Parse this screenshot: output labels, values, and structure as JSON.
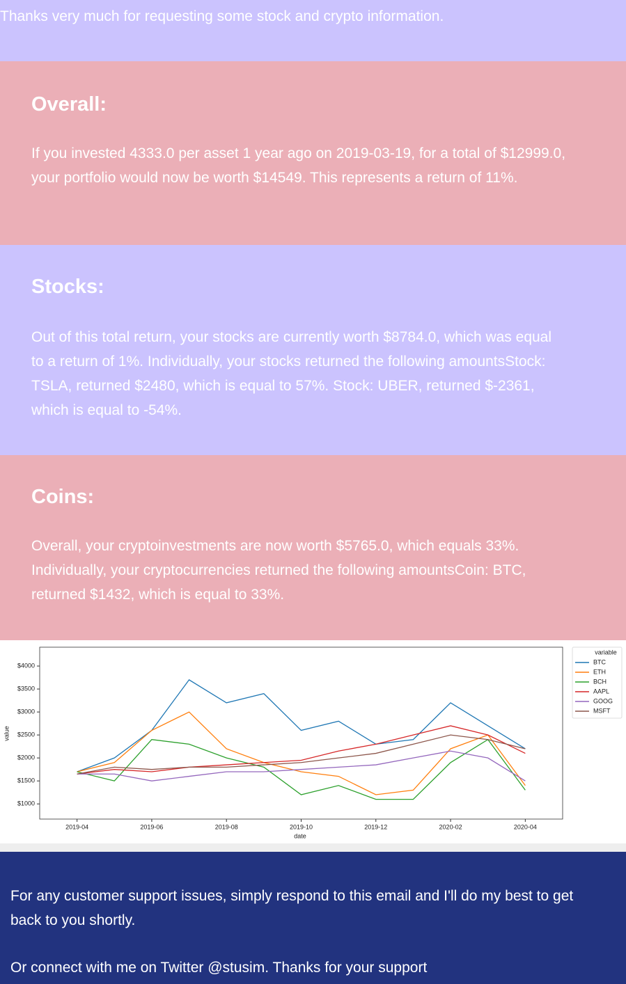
{
  "header": {
    "text": "Thanks very much for requesting some stock and crypto information."
  },
  "sections": [
    {
      "heading": "Overall:",
      "body": "If you invested 4333.0 per asset 1 year ago on 2019-03-19, for a total of $12999.0, your portfolio would now be worth $14549. This represents a return of 11%."
    },
    {
      "heading": "Stocks:",
      "body": "Out of this total return, your stocks are currently worth $8784.0, which was equal to a return of 1%. Individually, your stocks returned the following amountsStock: TSLA, returned $2480, which is equal to 57%. Stock: UBER, returned $-2361, which is equal to -54%."
    },
    {
      "heading": "Coins:",
      "body": "Overall, your cryptoinvestments are now worth $5765.0, which equals 33%. Individually, your cryptocurrencies returned the following amountsCoin: BTC, returned $1432, which is equal to 33%."
    }
  ],
  "chart_data": {
    "type": "line",
    "x_label": "date",
    "y_label": "value",
    "legend_title": "variable",
    "legend_position": "right",
    "x": [
      "2019-04",
      "2019-05",
      "2019-06",
      "2019-07",
      "2019-08",
      "2019-09",
      "2019-10",
      "2019-11",
      "2019-12",
      "2020-01",
      "2020-02",
      "2020-03",
      "2020-04"
    ],
    "xlim": [
      "2019-03",
      "2020-05"
    ],
    "xticks": [
      "2019-04",
      "2019-06",
      "2019-08",
      "2019-10",
      "2019-12",
      "2020-02",
      "2020-04"
    ],
    "ylim": [
      670,
      4410
    ],
    "yticks": [
      {
        "value": 1000,
        "label": "$1000"
      },
      {
        "value": 1500,
        "label": "$1500"
      },
      {
        "value": 2000,
        "label": "$2000"
      },
      {
        "value": 2500,
        "label": "$2500"
      },
      {
        "value": 3000,
        "label": "$3000"
      },
      {
        "value": 3500,
        "label": "$3500"
      },
      {
        "value": 4000,
        "label": "$4000"
      }
    ],
    "series": [
      {
        "name": "BTC",
        "color": "#1f77b4",
        "values": [
          1700,
          2000,
          2600,
          3700,
          3200,
          3400,
          2600,
          2800,
          2300,
          2400,
          3200,
          2700,
          2200
        ]
      },
      {
        "name": "ETH",
        "color": "#ff7f0e",
        "values": [
          1700,
          1900,
          2600,
          3000,
          2200,
          1900,
          1700,
          1600,
          1200,
          1300,
          2200,
          2500,
          1400
        ]
      },
      {
        "name": "BCH",
        "color": "#2ca02c",
        "values": [
          1700,
          1500,
          2400,
          2300,
          2000,
          1800,
          1200,
          1400,
          1100,
          1100,
          1900,
          2400,
          1300
        ]
      },
      {
        "name": "AAPL",
        "color": "#d62728",
        "values": [
          1650,
          1750,
          1700,
          1800,
          1850,
          1900,
          1950,
          2150,
          2300,
          2500,
          2700,
          2500,
          2100
        ]
      },
      {
        "name": "GOOG",
        "color": "#9467bd",
        "values": [
          1650,
          1650,
          1500,
          1600,
          1700,
          1700,
          1750,
          1800,
          1850,
          2000,
          2150,
          2000,
          1500
        ]
      },
      {
        "name": "MSFT",
        "color": "#8c564b",
        "values": [
          1650,
          1800,
          1750,
          1800,
          1800,
          1850,
          1900,
          2000,
          2100,
          2300,
          2500,
          2400,
          2200
        ]
      }
    ]
  },
  "footer": {
    "support": "For any customer support issues, simply respond to this email and I'll do my best to get back to you shortly.",
    "twitter": "Or connect with me on Twitter @stusim. Thanks for your support"
  }
}
